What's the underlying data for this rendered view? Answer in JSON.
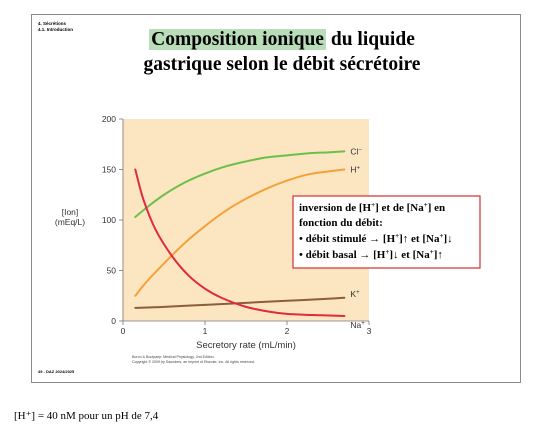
{
  "slide": {
    "section_lines": [
      "4. Sécrétions",
      "4.1. Introduction"
    ],
    "title_highlight": "Composition ionique",
    "title_rest_line1": " du liquide",
    "title_line2": "gastrique selon le débit sécrétoire",
    "footer_code": "49 - DAZ 2024/2025",
    "credit_lines": [
      "Boron & Boulpaep: Medical Physiology, 2nd Edition.",
      "Copyright © 2009 by Saunders, an imprint of Elsevier, Inc. All rights reserved."
    ]
  },
  "note_box": {
    "line1_a": "inversion de [H",
    "line1_b": "] et de [Na",
    "line1_c": "] en",
    "line2": "fonction du débit:",
    "line3_a": "• débit stimulé → [H",
    "line3_b": "]↑ et [Na",
    "line3_c": "]↓",
    "line4_a": "• débit basal → [H",
    "line4_b": "]↓ et [Na",
    "line4_c": "]↑",
    "sup": "+",
    "border_color": "#d62d2d"
  },
  "below_text": "[H⁺] = 40 nM pour un pH de 7,4",
  "chart_data": {
    "type": "line",
    "xlabel": "Secretory rate (mL/min)",
    "ylabel_lines": [
      "[Ion]",
      "(mEq/L)"
    ],
    "xlim": [
      0,
      3
    ],
    "ylim": [
      0,
      200
    ],
    "xticks": [
      0,
      1,
      2,
      3
    ],
    "yticks": [
      0,
      50,
      100,
      150,
      200
    ],
    "plot_background": "#fbe6c1",
    "series": [
      {
        "name": "Cl⁻",
        "label_main": "Cl",
        "label_sup": "−",
        "color": "#6cc04a",
        "x": [
          0.15,
          0.3,
          0.5,
          0.75,
          1.0,
          1.25,
          1.5,
          1.75,
          2.0,
          2.25,
          2.5,
          2.7
        ],
        "y": [
          103,
          113,
          125,
          137,
          146,
          153,
          158,
          162,
          164,
          166,
          167,
          168
        ]
      },
      {
        "name": "H⁺",
        "label_main": "H",
        "label_sup": "+",
        "color": "#f5a13a",
        "x": [
          0.15,
          0.3,
          0.5,
          0.75,
          1.0,
          1.25,
          1.5,
          1.75,
          2.0,
          2.25,
          2.5,
          2.7
        ],
        "y": [
          25,
          40,
          57,
          77,
          94,
          109,
          121,
          131,
          139,
          145,
          148,
          150
        ]
      },
      {
        "name": "K⁺",
        "label_main": "K",
        "label_sup": "+",
        "color": "#8b5e3c",
        "x": [
          0.15,
          0.5,
          1.0,
          1.5,
          2.0,
          2.5,
          2.7
        ],
        "y": [
          13,
          14,
          16,
          18,
          20,
          22,
          23
        ]
      },
      {
        "name": "Na⁺",
        "label_main": "Na",
        "label_sup": "+",
        "color": "#e02a3f",
        "x": [
          0.15,
          0.25,
          0.4,
          0.6,
          0.8,
          1.0,
          1.2,
          1.5,
          1.8,
          2.0,
          2.3,
          2.7
        ],
        "y": [
          150,
          120,
          90,
          64,
          45,
          32,
          23,
          14,
          9,
          7,
          6,
          5
        ]
      }
    ]
  }
}
